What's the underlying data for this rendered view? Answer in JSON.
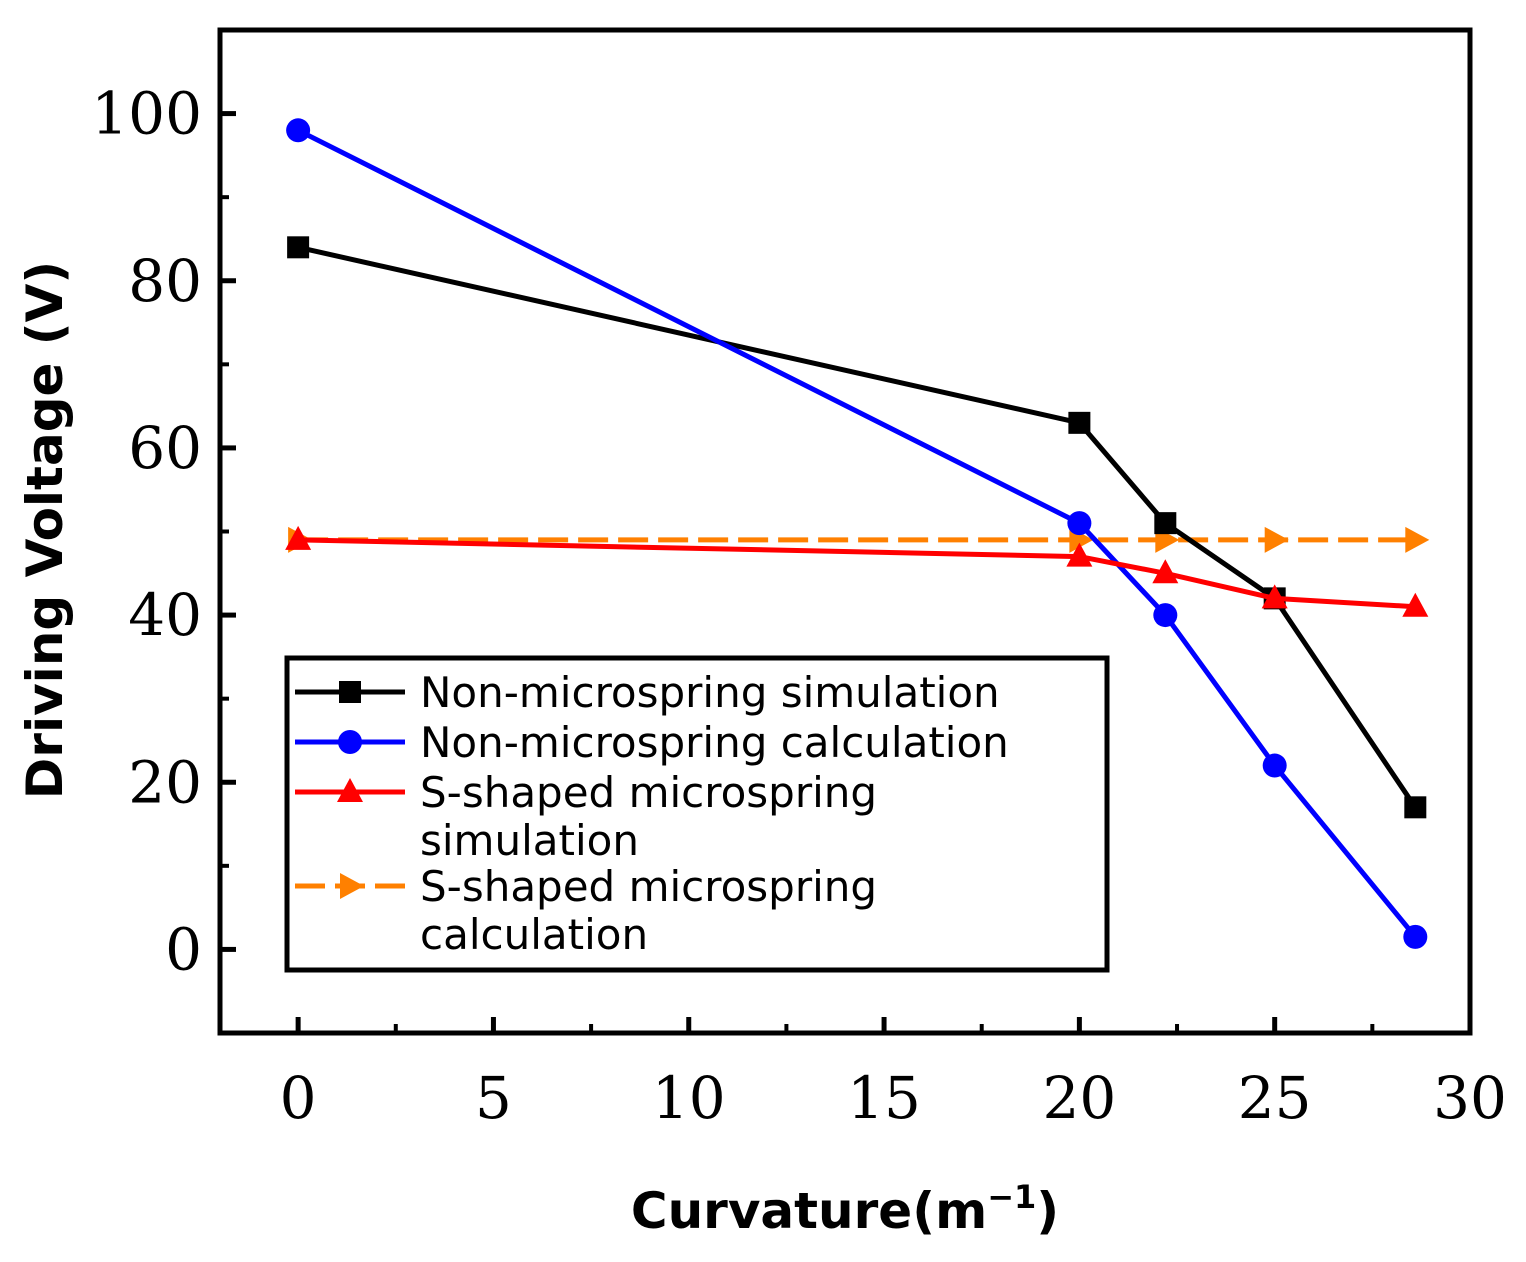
{
  "chart_data": {
    "type": "line",
    "xlabel": "Curvature(m",
    "xlabel_superscript": "−1",
    "xlabel_close": ")",
    "ylabel": "Driving Voltage (V)",
    "xlim": [
      -2,
      30
    ],
    "ylim": [
      -10,
      110
    ],
    "xticks": [
      0,
      5,
      10,
      15,
      20,
      25,
      30
    ],
    "yticks": [
      0,
      20,
      40,
      60,
      80,
      100
    ],
    "grid": false,
    "legend_position": "bottom-left",
    "series": [
      {
        "name": "Non-microspring simulation",
        "color": "#000000",
        "marker": "square",
        "x": [
          0,
          20,
          22.2,
          25,
          28.6
        ],
        "y": [
          84,
          63,
          51,
          42,
          17
        ]
      },
      {
        "name": "Non-microspring calculation",
        "color": "#0000ff",
        "marker": "circle",
        "x": [
          0,
          20,
          22.2,
          25,
          28.6
        ],
        "y": [
          98,
          51,
          40,
          22,
          1.5
        ]
      },
      {
        "name": "S-shaped microspring simulation",
        "color": "#ff0000",
        "marker": "triangle-up",
        "x": [
          0,
          20,
          22.2,
          25,
          28.6
        ],
        "y": [
          49,
          47,
          45,
          42,
          41
        ]
      },
      {
        "name": "S-shaped microspring calculation",
        "color": "#ff8000",
        "marker": "triangle-right",
        "x": [
          0,
          20,
          22.2,
          25,
          28.6
        ],
        "y": [
          49,
          49,
          49,
          49,
          49
        ]
      }
    ]
  }
}
